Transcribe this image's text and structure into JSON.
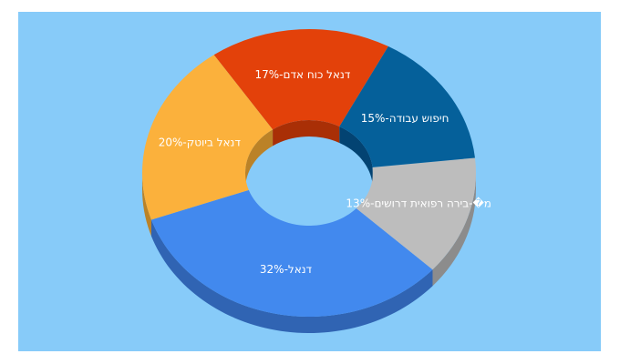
{
  "chart_data": {
    "type": "pie",
    "variant": "3d-donut",
    "categories": [
      "דנאל",
      "מ�-בירה רפואית דרושים",
      "חיפוש עבודה",
      "דנאל כוח אדם",
      "דנאל ביוטק"
    ],
    "values": [
      32,
      13,
      15,
      17,
      20
    ],
    "labels": [
      "32%-דנאל",
      "13%-מ�-בירה רפואית דרושים",
      "15%-חיפוש עבודה",
      "17%-דנאל כוח אדם",
      "20%-דנאל ביוטק"
    ],
    "colors": [
      "#4289ee",
      "#bdbdbd",
      "#05609a",
      "#e3410a",
      "#fbb13c"
    ],
    "side_colors": [
      "#3064b3",
      "#8c8c8c",
      "#034372",
      "#a92f06",
      "#bb8227"
    ],
    "legend": "none"
  }
}
